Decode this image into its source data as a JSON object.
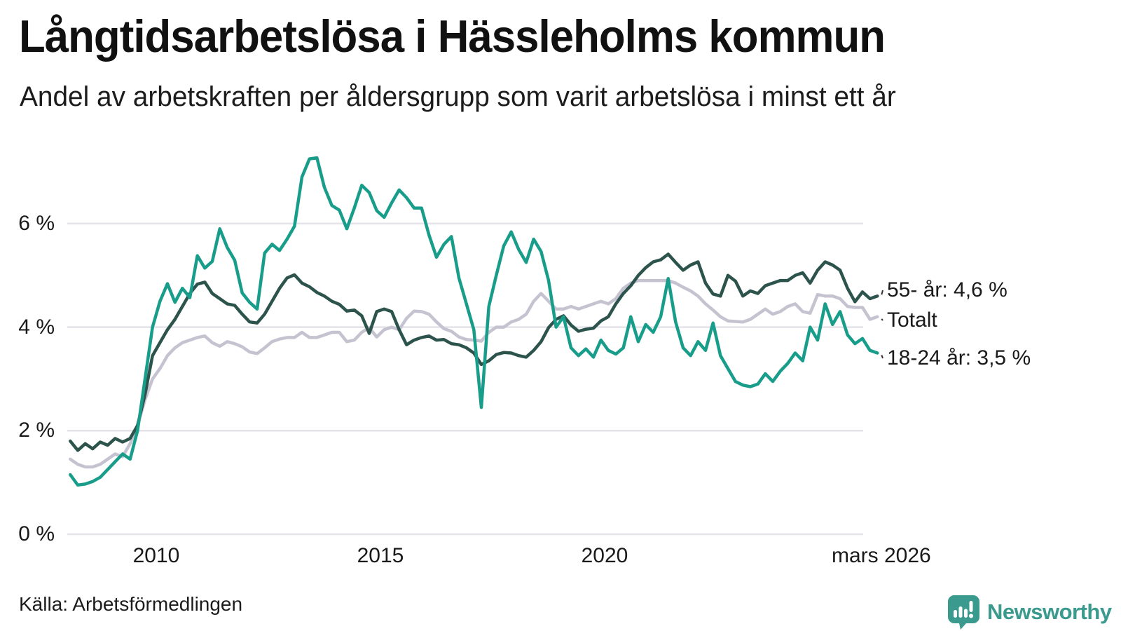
{
  "title": "Långtidsarbetslösa i Hässleholms kommun",
  "subtitle": "Andel av arbetskraften per åldersgrupp som varit arbetslösa i minst ett år",
  "source": "Källa: Arbetsförmedlingen",
  "brand": {
    "name": "Newsworthy",
    "color": "#3a9a8e"
  },
  "colors": {
    "background": "#ffffff",
    "gridline": "#e3e3e9",
    "text": "#1a1a1a",
    "connector": "#333333"
  },
  "chart_data": {
    "type": "line",
    "title": "Långtidsarbetslösa i Hässleholms kommun",
    "subtitle": "Andel av arbetskraften per åldersgrupp som varit arbetslösa i minst ett år",
    "unit": "%",
    "x_start_year": 2008.0833,
    "x_step_years": 0.166667,
    "x_end_label": "mars 2026",
    "ylim": [
      0,
      7.6
    ],
    "grid": true,
    "legend_position": "right-end-labels",
    "yticks": [
      {
        "value": 0,
        "label": "0 %"
      },
      {
        "value": 2,
        "label": "2 %"
      },
      {
        "value": 4,
        "label": "4 %"
      },
      {
        "value": 6,
        "label": "6 %"
      }
    ],
    "xticks": [
      {
        "year": 2010,
        "label": "2010"
      },
      {
        "year": 2015,
        "label": "2015"
      },
      {
        "year": 2020,
        "label": "2020"
      },
      {
        "year": 2026.17,
        "label": "mars 2026"
      }
    ],
    "series": [
      {
        "key": "total",
        "name": "Totalt",
        "end_label": "Totalt",
        "end_value": 4.2,
        "color": "#c6c3d1",
        "values": [
          1.45,
          1.35,
          1.3,
          1.3,
          1.35,
          1.45,
          1.55,
          1.5,
          1.75,
          2.1,
          2.6,
          3.0,
          3.2,
          3.45,
          3.6,
          3.7,
          3.75,
          3.8,
          3.83,
          3.7,
          3.63,
          3.72,
          3.68,
          3.62,
          3.52,
          3.49,
          3.6,
          3.72,
          3.77,
          3.8,
          3.8,
          3.9,
          3.8,
          3.8,
          3.85,
          3.9,
          3.9,
          3.72,
          3.75,
          3.9,
          3.99,
          3.81,
          3.95,
          4.0,
          3.95,
          4.17,
          4.31,
          4.3,
          4.25,
          4.1,
          3.97,
          3.92,
          3.81,
          3.76,
          3.75,
          3.73,
          3.9,
          4.0,
          4.0,
          4.1,
          4.15,
          4.25,
          4.5,
          4.65,
          4.5,
          4.35,
          4.35,
          4.4,
          4.35,
          4.4,
          4.45,
          4.5,
          4.45,
          4.55,
          4.75,
          4.85,
          4.9,
          4.9,
          4.9,
          4.9,
          4.9,
          4.85,
          4.77,
          4.7,
          4.6,
          4.45,
          4.33,
          4.2,
          4.12,
          4.11,
          4.1,
          4.15,
          4.25,
          4.35,
          4.25,
          4.3,
          4.4,
          4.45,
          4.3,
          4.27,
          4.63,
          4.6,
          4.6,
          4.55,
          4.4,
          4.38,
          4.38,
          4.15,
          4.2
        ]
      },
      {
        "key": "y55",
        "name": "55- år",
        "end_label": "55- år: 4,6 %",
        "end_value": 4.6,
        "color": "#2d544c",
        "values": [
          1.8,
          1.62,
          1.75,
          1.65,
          1.78,
          1.72,
          1.85,
          1.78,
          1.85,
          2.1,
          2.7,
          3.45,
          3.7,
          3.95,
          4.15,
          4.4,
          4.65,
          4.83,
          4.87,
          4.65,
          4.55,
          4.45,
          4.42,
          4.25,
          4.1,
          4.08,
          4.25,
          4.5,
          4.75,
          4.95,
          5.01,
          4.85,
          4.78,
          4.67,
          4.6,
          4.5,
          4.44,
          4.31,
          4.33,
          4.22,
          3.88,
          4.3,
          4.35,
          4.3,
          3.95,
          3.66,
          3.75,
          3.8,
          3.83,
          3.75,
          3.76,
          3.68,
          3.66,
          3.6,
          3.5,
          3.28,
          3.35,
          3.47,
          3.51,
          3.5,
          3.45,
          3.42,
          3.55,
          3.72,
          3.99,
          4.15,
          4.22,
          4.04,
          3.92,
          3.96,
          3.98,
          4.12,
          4.2,
          4.45,
          4.65,
          4.8,
          5.0,
          5.15,
          5.26,
          5.3,
          5.41,
          5.25,
          5.1,
          5.2,
          5.26,
          4.85,
          4.64,
          4.6,
          5.0,
          4.89,
          4.6,
          4.7,
          4.65,
          4.8,
          4.85,
          4.9,
          4.9,
          5.0,
          5.05,
          4.85,
          5.1,
          5.26,
          5.2,
          5.1,
          4.75,
          4.49,
          4.68,
          4.55,
          4.6
        ]
      },
      {
        "key": "y1824",
        "name": "18-24 år",
        "end_label": "18-24 år: 3,5 %",
        "end_value": 3.5,
        "color": "#199d8b",
        "values": [
          1.15,
          0.95,
          0.97,
          1.02,
          1.1,
          1.25,
          1.4,
          1.55,
          1.45,
          2.0,
          3.0,
          4.0,
          4.5,
          4.84,
          4.48,
          4.75,
          4.57,
          5.38,
          5.14,
          5.27,
          5.9,
          5.54,
          5.29,
          4.66,
          4.48,
          4.35,
          5.43,
          5.6,
          5.48,
          5.7,
          5.95,
          6.9,
          7.25,
          7.27,
          6.7,
          6.35,
          6.26,
          5.9,
          6.3,
          6.74,
          6.6,
          6.25,
          6.12,
          6.4,
          6.65,
          6.5,
          6.3,
          6.3,
          5.78,
          5.35,
          5.6,
          5.75,
          4.95,
          4.45,
          3.95,
          2.45,
          4.4,
          5.0,
          5.57,
          5.84,
          5.5,
          5.25,
          5.7,
          5.46,
          4.9,
          4.0,
          4.2,
          3.6,
          3.45,
          3.58,
          3.42,
          3.75,
          3.55,
          3.48,
          3.6,
          4.2,
          3.72,
          4.05,
          3.9,
          4.2,
          4.94,
          4.1,
          3.6,
          3.45,
          3.72,
          3.55,
          4.08,
          3.45,
          3.2,
          2.95,
          2.88,
          2.85,
          2.9,
          3.1,
          2.95,
          3.15,
          3.3,
          3.5,
          3.35,
          4.0,
          3.75,
          4.45,
          4.05,
          4.3,
          3.85,
          3.68,
          3.78,
          3.55,
          3.5
        ]
      }
    ]
  }
}
